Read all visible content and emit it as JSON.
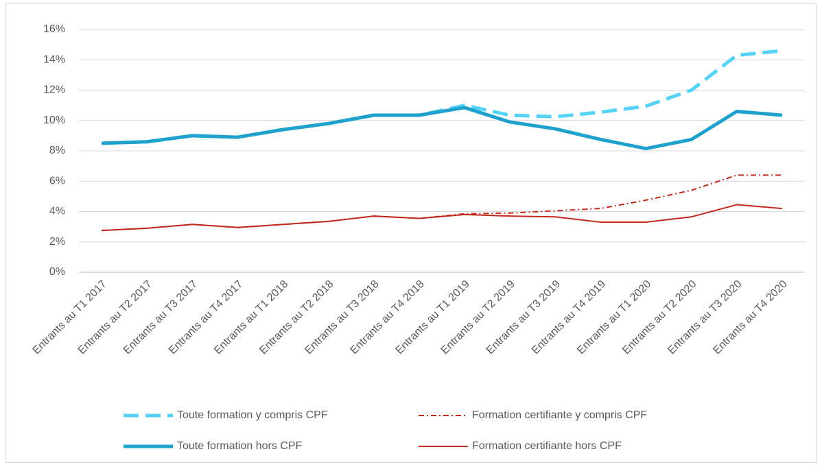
{
  "chart_data": {
    "type": "line",
    "categories": [
      "Entrants au T1 2017",
      "Entrants au T2 2017",
      "Entrants au T3 2017",
      "Entrants au T4 2017",
      "Entrants au T1 2018",
      "Entrants au T2 2018",
      "Entrants au T3 2018",
      "Entrants au T4 2018",
      "Entrants au T1 2019",
      "Entrants au T2 2019",
      "Entrants au T3 2019",
      "Entrants au T4 2019",
      "Entrants au T1 2020",
      "Entrants au T2 2020",
      "Entrants au T3 2020",
      "Entrants au T4 2020"
    ],
    "series": [
      {
        "name": "Toute formation y compris CPF",
        "color": "#55d2f6",
        "dash": "dashed",
        "width": 5,
        "values": [
          8.5,
          8.6,
          9.0,
          8.9,
          9.4,
          9.8,
          10.35,
          10.35,
          11.0,
          10.35,
          10.25,
          10.55,
          10.95,
          12.0,
          14.3,
          14.6
        ]
      },
      {
        "name": "Formation certifiante y compris CPF",
        "color": "#c0281c",
        "dash": "dashdot",
        "width": 2,
        "values": [
          2.75,
          2.9,
          3.15,
          2.95,
          3.15,
          3.35,
          3.7,
          3.55,
          3.85,
          3.9,
          4.05,
          4.2,
          4.75,
          5.4,
          6.4,
          6.4
        ]
      },
      {
        "name": "Toute formation hors CPF",
        "color": "#1fa1cd",
        "dash": "solid",
        "width": 5,
        "values": [
          8.5,
          8.6,
          9.0,
          8.9,
          9.4,
          9.8,
          10.35,
          10.35,
          10.85,
          9.9,
          9.45,
          8.75,
          8.15,
          8.75,
          10.6,
          10.35
        ]
      },
      {
        "name": "Formation certifiante hors CPF",
        "color": "#c0281c",
        "dash": "solid",
        "width": 2,
        "values": [
          2.75,
          2.9,
          3.15,
          2.95,
          3.15,
          3.35,
          3.7,
          3.55,
          3.8,
          3.7,
          3.65,
          3.3,
          3.3,
          3.65,
          4.45,
          4.2
        ]
      }
    ],
    "ylim": [
      0,
      16
    ],
    "yticks": [
      {
        "value": 0,
        "label": "0%"
      },
      {
        "value": 2,
        "label": "2%"
      },
      {
        "value": 4,
        "label": "4%"
      },
      {
        "value": 6,
        "label": "6%"
      },
      {
        "value": 8,
        "label": "8%"
      },
      {
        "value": 10,
        "label": "10%"
      },
      {
        "value": 12,
        "label": "12%"
      },
      {
        "value": 14,
        "label": "14%"
      },
      {
        "value": 16,
        "label": "16%"
      }
    ],
    "grid": true,
    "legend": "bottom"
  }
}
